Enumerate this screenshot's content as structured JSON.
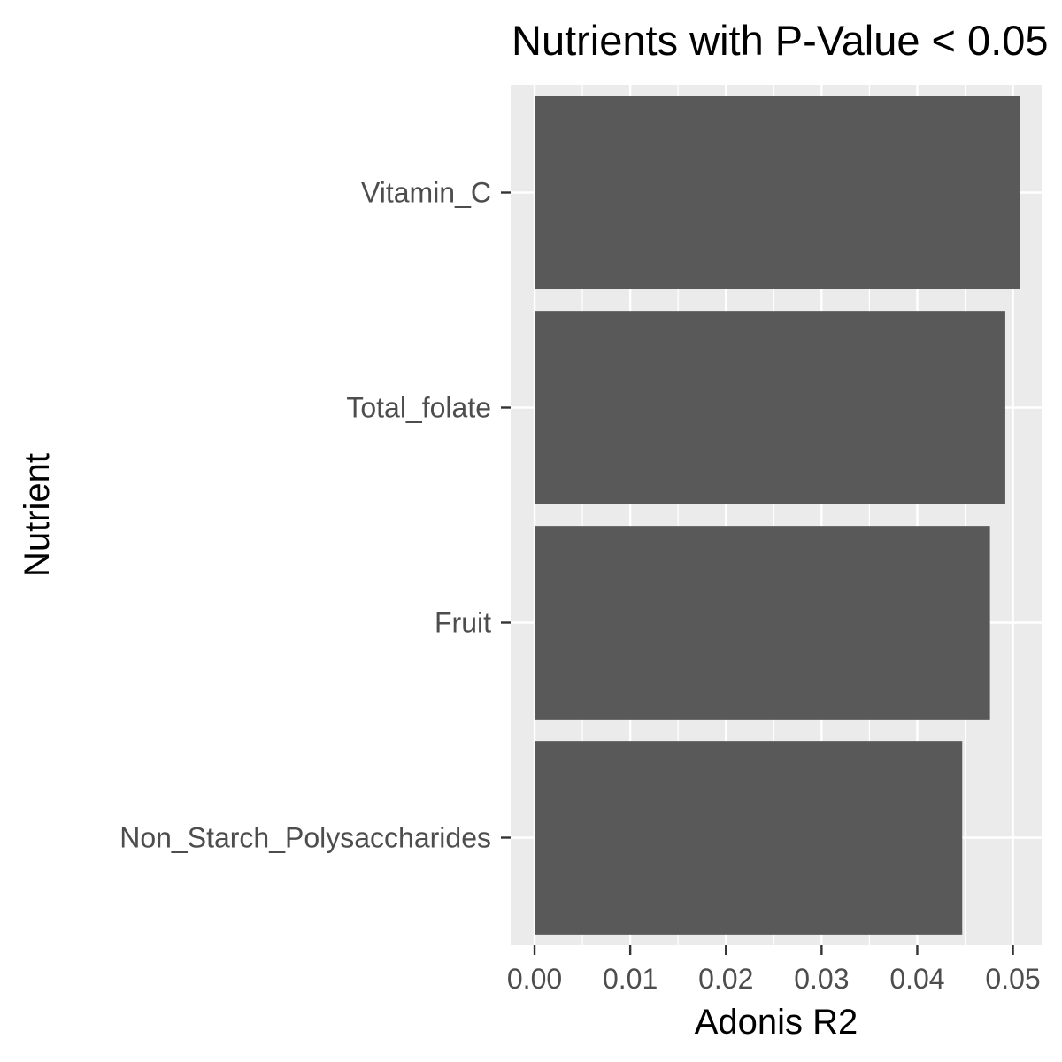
{
  "chart_data": {
    "type": "bar",
    "orientation": "horizontal",
    "title": "Nutrients with P-Value < 0.05",
    "xlabel": "Adonis R2",
    "ylabel": "Nutrient",
    "categories": [
      "Vitamin_C",
      "Total_folate",
      "Fruit",
      "Non_Starch_Polysaccharides"
    ],
    "values": [
      0.0507,
      0.0492,
      0.0476,
      0.0447
    ],
    "xlim": [
      -0.0025,
      0.053
    ],
    "xticks": [
      0.0,
      0.01,
      0.02,
      0.03,
      0.04,
      0.05
    ],
    "xtick_labels": [
      "0.00",
      "0.01",
      "0.02",
      "0.03",
      "0.04",
      "0.05"
    ],
    "grid": true,
    "legend": "none",
    "colors": {
      "bar": "#595959",
      "panel": "#ebebeb",
      "grid": "#ffffff",
      "tick_text": "#4d4d4d",
      "title_text": "#000000"
    }
  }
}
